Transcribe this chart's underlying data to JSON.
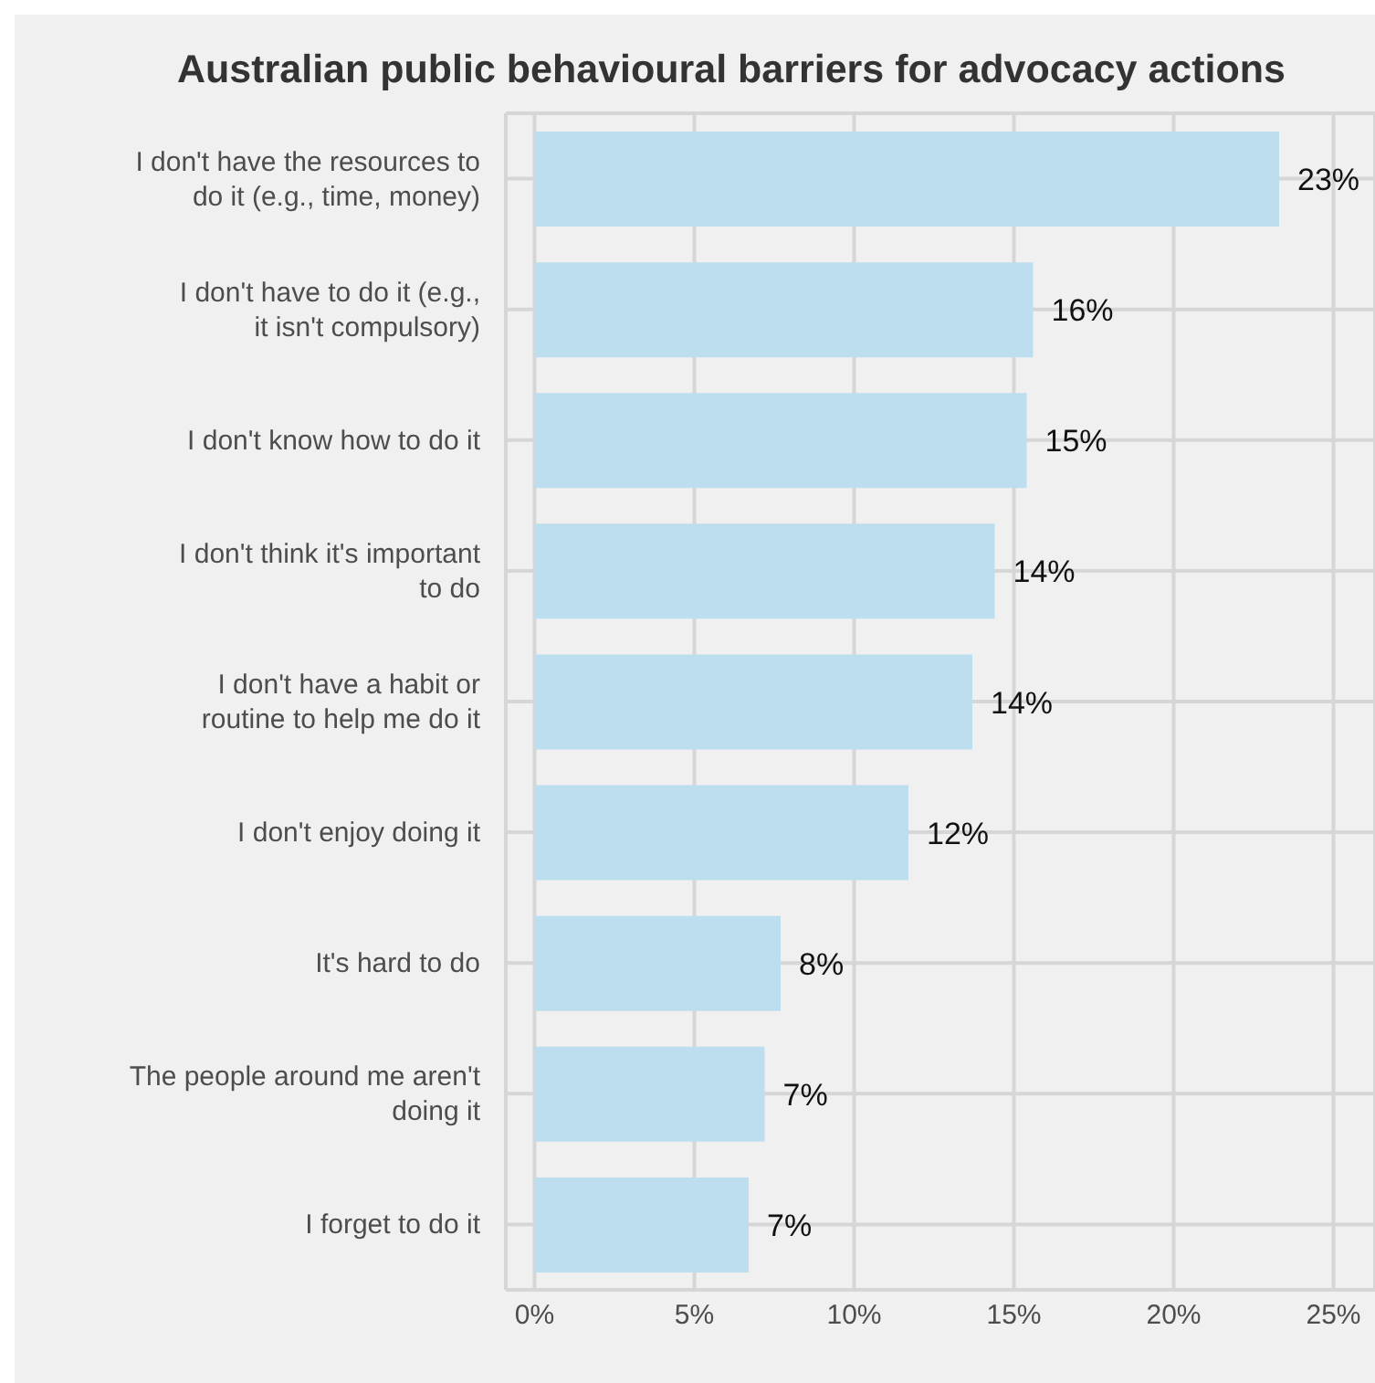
{
  "chart_data": {
    "type": "bar",
    "orientation": "horizontal",
    "title": "Australian public behavioural barriers for advocacy actions",
    "categories": [
      "I don't have the resources to do it (e.g., time, money)",
      "I don't have to do it (e.g., it isn't compulsory)",
      "I don't know how to do it",
      "I don't think it's important to do",
      "I don't have a habit or routine to help me do it",
      "I don't enjoy doing it",
      "It's hard to do",
      "The people around me aren't doing it",
      "I forget to do it"
    ],
    "values": [
      23.3,
      15.6,
      15.4,
      14.4,
      13.7,
      11.7,
      7.7,
      7.2,
      6.7
    ],
    "value_labels": [
      "23%",
      "16%",
      "15%",
      "14%",
      "14%",
      "12%",
      "8%",
      "7%",
      "7%"
    ],
    "color": "#bddeee",
    "xlim": [
      -0.9,
      26.3
    ],
    "xticks": [
      {
        "value": 0,
        "label": "0%"
      },
      {
        "value": 5,
        "label": "5%"
      },
      {
        "value": 10,
        "label": "10%"
      },
      {
        "value": 15,
        "label": "15%"
      },
      {
        "value": 20,
        "label": "20%"
      },
      {
        "value": 25,
        "label": "25%"
      }
    ],
    "grid": true
  }
}
